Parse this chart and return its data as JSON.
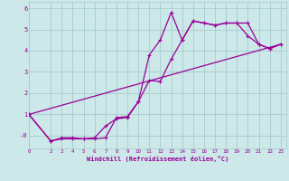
{
  "xlabel": "Windchill (Refroidissement éolien,°C)",
  "bg_color": "#cce8e8",
  "grid_color": "#a8cccc",
  "line_color": "#990099",
  "xlim": [
    0,
    23.5
  ],
  "ylim": [
    -0.6,
    6.3
  ],
  "xticks": [
    0,
    2,
    3,
    4,
    5,
    6,
    7,
    8,
    9,
    10,
    11,
    12,
    13,
    14,
    15,
    16,
    17,
    18,
    19,
    20,
    21,
    22,
    23
  ],
  "yticks": [
    0,
    1,
    2,
    3,
    4,
    5,
    6
  ],
  "ytick_labels": [
    "-0",
    "1",
    "2",
    "3",
    "4",
    "5",
    "6"
  ],
  "line1_x": [
    0,
    2,
    3,
    4,
    5,
    6,
    7,
    8,
    9,
    10,
    11,
    12,
    13,
    14,
    15,
    16,
    17,
    18,
    19,
    20,
    21,
    22,
    23
  ],
  "line1_y": [
    1.0,
    -0.25,
    -0.1,
    -0.1,
    -0.15,
    -0.1,
    0.45,
    0.8,
    0.85,
    1.6,
    3.8,
    4.5,
    5.8,
    4.5,
    5.4,
    5.3,
    5.2,
    5.3,
    5.3,
    4.7,
    4.3,
    4.1,
    4.3
  ],
  "line2_x": [
    0,
    23
  ],
  "line2_y": [
    1.0,
    4.3
  ],
  "line3_x": [
    0,
    2,
    3,
    4,
    5,
    6,
    7,
    8,
    9,
    10,
    11,
    12,
    13,
    14,
    15,
    16,
    17,
    18,
    19,
    20,
    21,
    22,
    23
  ],
  "line3_y": [
    1.0,
    -0.25,
    -0.15,
    -0.15,
    -0.15,
    -0.15,
    -0.1,
    0.85,
    0.9,
    1.6,
    2.6,
    2.55,
    3.6,
    4.5,
    5.4,
    5.3,
    5.2,
    5.3,
    5.3,
    5.3,
    4.3,
    4.1,
    4.3
  ]
}
